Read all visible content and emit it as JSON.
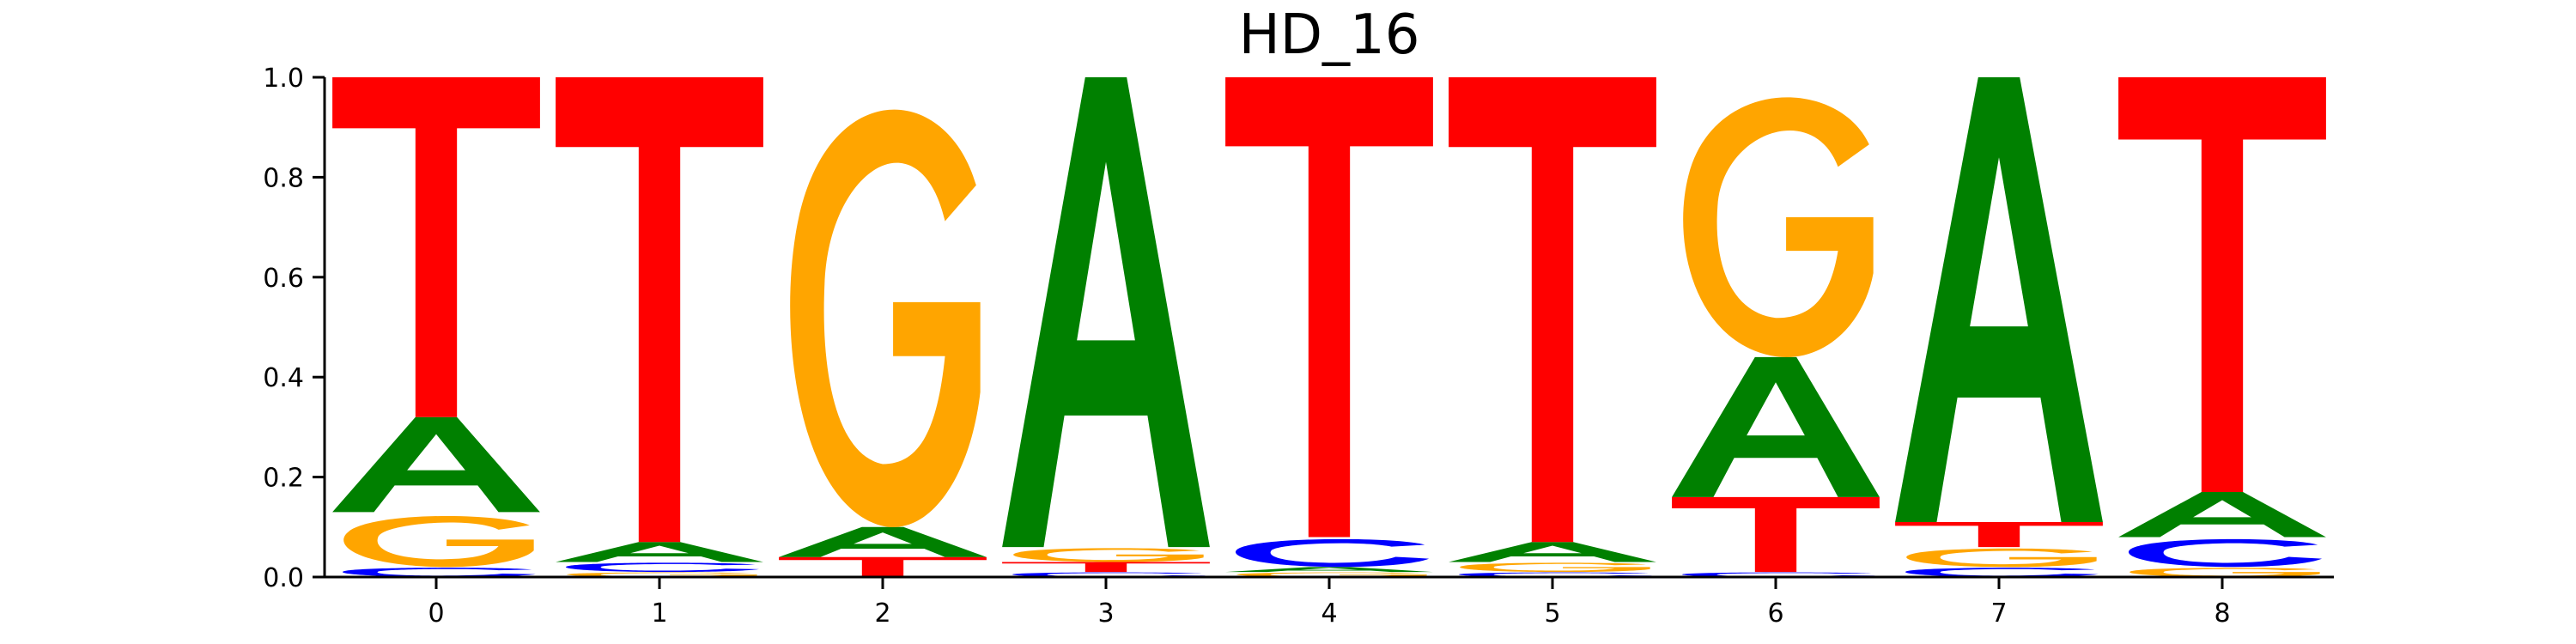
{
  "chart_data": {
    "type": "sequence-logo",
    "title": "HD_16",
    "xlabel": "",
    "ylabel": "",
    "ylim": [
      0,
      1
    ],
    "y_ticks": [
      "0.0",
      "0.2",
      "0.4",
      "0.6",
      "0.8",
      "1.0"
    ],
    "x_ticks": [
      "0",
      "1",
      "2",
      "3",
      "4",
      "5",
      "6",
      "7",
      "8"
    ],
    "grid": false,
    "colors": {
      "A": "#008000",
      "C": "#0000ff",
      "G": "#ffa500",
      "T": "#ff0000"
    },
    "positions": [
      {
        "x": 0,
        "stack": [
          {
            "base": "C",
            "value": 0.02
          },
          {
            "base": "G",
            "value": 0.11
          },
          {
            "base": "A",
            "value": 0.19
          },
          {
            "base": "T",
            "value": 0.68
          }
        ]
      },
      {
        "x": 1,
        "stack": [
          {
            "base": "G",
            "value": 0.01
          },
          {
            "base": "C",
            "value": 0.02
          },
          {
            "base": "A",
            "value": 0.04
          },
          {
            "base": "T",
            "value": 0.93
          }
        ]
      },
      {
        "x": 2,
        "stack": [
          {
            "base": "C",
            "value": 0.0
          },
          {
            "base": "T",
            "value": 0.04
          },
          {
            "base": "A",
            "value": 0.06
          },
          {
            "base": "G",
            "value": 0.9
          }
        ]
      },
      {
        "x": 3,
        "stack": [
          {
            "base": "C",
            "value": 0.01
          },
          {
            "base": "T",
            "value": 0.02
          },
          {
            "base": "G",
            "value": 0.03
          },
          {
            "base": "A",
            "value": 0.94
          }
        ]
      },
      {
        "x": 4,
        "stack": [
          {
            "base": "G",
            "value": 0.01
          },
          {
            "base": "A",
            "value": 0.01
          },
          {
            "base": "C",
            "value": 0.06
          },
          {
            "base": "T",
            "value": 0.92
          }
        ]
      },
      {
        "x": 5,
        "stack": [
          {
            "base": "C",
            "value": 0.01
          },
          {
            "base": "G",
            "value": 0.02
          },
          {
            "base": "A",
            "value": 0.04
          },
          {
            "base": "T",
            "value": 0.93
          }
        ]
      },
      {
        "x": 6,
        "stack": [
          {
            "base": "C",
            "value": 0.01
          },
          {
            "base": "T",
            "value": 0.15
          },
          {
            "base": "A",
            "value": 0.28
          },
          {
            "base": "G",
            "value": 0.56
          }
        ]
      },
      {
        "x": 7,
        "stack": [
          {
            "base": "C",
            "value": 0.02
          },
          {
            "base": "G",
            "value": 0.04
          },
          {
            "base": "T",
            "value": 0.05
          },
          {
            "base": "A",
            "value": 0.89
          }
        ]
      },
      {
        "x": 8,
        "stack": [
          {
            "base": "G",
            "value": 0.02
          },
          {
            "base": "C",
            "value": 0.06
          },
          {
            "base": "A",
            "value": 0.09
          },
          {
            "base": "T",
            "value": 0.83
          }
        ]
      }
    ]
  }
}
